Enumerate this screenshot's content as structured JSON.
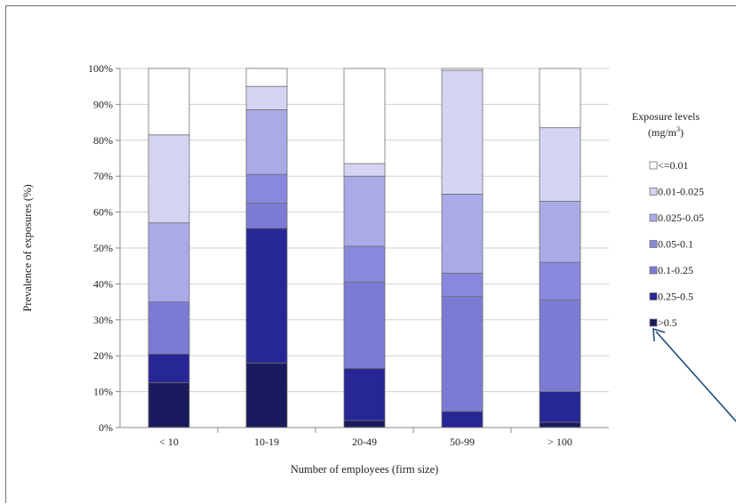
{
  "chart_data": {
    "type": "bar",
    "stacked": true,
    "title": "",
    "xlabel": "Number of employees (firm size)",
    "ylabel": "Prevalence of exposures (%)",
    "ylim": [
      0,
      100
    ],
    "y_ticks": [
      "0%",
      "10%",
      "20%",
      "30%",
      "40%",
      "50%",
      "60%",
      "70%",
      "80%",
      "90%",
      "100%"
    ],
    "categories": [
      "< 10",
      "10-19",
      "20-49",
      "50-99",
      "> 100"
    ],
    "legend": {
      "title_line1": "Exposure levels",
      "title_line2_prefix": "(mg/m",
      "title_line2_sup": "3",
      "title_line2_suffix": ")",
      "placement": "right"
    },
    "series": [
      {
        "name": ">0.5",
        "color": "#1a1a5e",
        "values": [
          12.5,
          18,
          2,
          0,
          1.5
        ]
      },
      {
        "name": "0.25-0.5",
        "color": "#262696",
        "values": [
          8,
          37.5,
          14.5,
          4.5,
          8.5
        ]
      },
      {
        "name": "0.1-0.25",
        "color": "#7b7bd6",
        "values": [
          14.5,
          7,
          24,
          32,
          25.5
        ]
      },
      {
        "name": "0.05-0.1",
        "color": "#8888de",
        "values": [
          0,
          8,
          10,
          6.5,
          10.5
        ]
      },
      {
        "name": "0.025-0.05",
        "color": "#aaaae8",
        "values": [
          22,
          18,
          19.5,
          22,
          17
        ]
      },
      {
        "name": "0.01-0.025",
        "color": "#d4d4f2",
        "values": [
          24.5,
          6.5,
          3.5,
          34.5,
          20.5
        ]
      },
      {
        "name": "<=0.01",
        "color": "#ffffff",
        "values": [
          18.5,
          5,
          26.5,
          0.5,
          16.5
        ]
      }
    ],
    "grid": true,
    "annotation": "arrow pointing to >0.5 legend entry"
  }
}
